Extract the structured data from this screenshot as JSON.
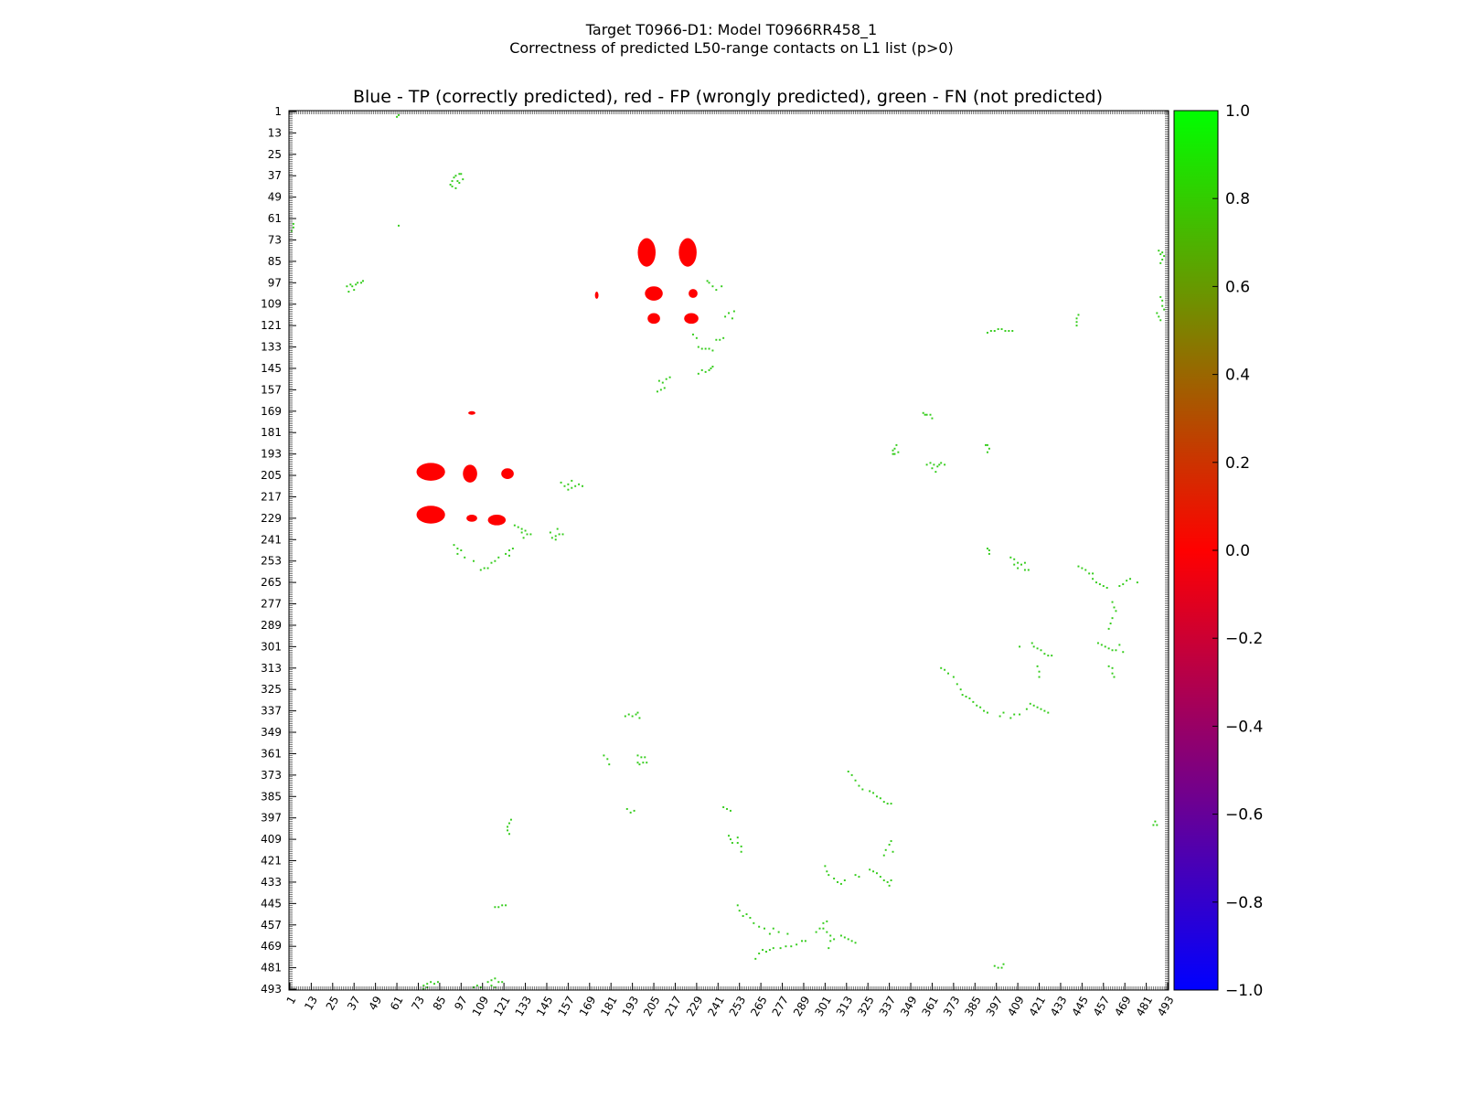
{
  "figure": {
    "title_line1": "Target T0966-D1: Model T0966RR458_1",
    "title_line2": "Correctness of predicted L50-range contacts on L1 list (p>0)"
  },
  "chart_data": {
    "type": "heatmap",
    "title": "Blue - TP (correctly predicted), red - FP (wrongly predicted), green - FN (not predicted)",
    "xlabel": "",
    "ylabel": "",
    "xlim": [
      1,
      493
    ],
    "ylim": [
      1,
      493
    ],
    "y_axis_inverted": true,
    "grid": false,
    "x_ticks": [
      "1",
      "13",
      "25",
      "37",
      "49",
      "61",
      "73",
      "85",
      "97",
      "109",
      "121",
      "133",
      "145",
      "157",
      "169",
      "181",
      "193",
      "205",
      "217",
      "229",
      "241",
      "253",
      "265",
      "277",
      "289",
      "301",
      "313",
      "325",
      "337",
      "349",
      "361",
      "373",
      "385",
      "397",
      "409",
      "421",
      "433",
      "445",
      "457",
      "469",
      "481",
      "493"
    ],
    "y_ticks": [
      "1",
      "13",
      "25",
      "37",
      "49",
      "61",
      "73",
      "85",
      "97",
      "109",
      "121",
      "133",
      "145",
      "157",
      "169",
      "181",
      "193",
      "205",
      "217",
      "229",
      "241",
      "253",
      "265",
      "277",
      "289",
      "301",
      "313",
      "325",
      "337",
      "349",
      "361",
      "373",
      "385",
      "397",
      "409",
      "421",
      "433",
      "445",
      "457",
      "469",
      "481",
      "493"
    ],
    "colorbar": {
      "min": -1.0,
      "max": 1.0,
      "ticks": [
        "1.0",
        "0.8",
        "0.6",
        "0.4",
        "0.2",
        "0.0",
        "−0.2",
        "−0.4",
        "−0.6",
        "−0.8",
        "−1.0"
      ],
      "colors": [
        "#00ff00",
        "#4a8f00",
        "#ff0000",
        "#0000ff"
      ]
    },
    "fp_regions": [
      {
        "x": 201,
        "y": 80,
        "rx": 5,
        "ry": 8
      },
      {
        "x": 224,
        "y": 80,
        "rx": 5,
        "ry": 8
      },
      {
        "x": 205,
        "y": 103,
        "rx": 5,
        "ry": 4
      },
      {
        "x": 227,
        "y": 103,
        "rx": 2.5,
        "ry": 2.5
      },
      {
        "x": 205,
        "y": 117,
        "rx": 3.5,
        "ry": 3
      },
      {
        "x": 226,
        "y": 117,
        "rx": 4,
        "ry": 3
      },
      {
        "x": 173,
        "y": 104,
        "rx": 1,
        "ry": 2
      },
      {
        "x": 80,
        "y": 203,
        "rx": 8,
        "ry": 5
      },
      {
        "x": 102,
        "y": 204,
        "rx": 4,
        "ry": 5
      },
      {
        "x": 123,
        "y": 204,
        "rx": 3.5,
        "ry": 3
      },
      {
        "x": 80,
        "y": 227,
        "rx": 8,
        "ry": 5
      },
      {
        "x": 103,
        "y": 229,
        "rx": 3,
        "ry": 2
      },
      {
        "x": 117,
        "y": 230,
        "rx": 5,
        "ry": 3
      },
      {
        "x": 103,
        "y": 170,
        "rx": 2,
        "ry": 1
      }
    ],
    "fn_points": [
      [
        61,
        4
      ],
      [
        62,
        3
      ],
      [
        62,
        65
      ],
      [
        3,
        64
      ],
      [
        3,
        66
      ],
      [
        2,
        68
      ],
      [
        93,
        38
      ],
      [
        94,
        37
      ],
      [
        95,
        40
      ],
      [
        96,
        41
      ],
      [
        92,
        40
      ],
      [
        91,
        42
      ],
      [
        98,
        39
      ],
      [
        97,
        36
      ],
      [
        96,
        36
      ],
      [
        94,
        44
      ],
      [
        92,
        43
      ],
      [
        33,
        99
      ],
      [
        35,
        98
      ],
      [
        36,
        99
      ],
      [
        38,
        98
      ],
      [
        39,
        97
      ],
      [
        41,
        97
      ],
      [
        42,
        96
      ],
      [
        34,
        102
      ],
      [
        37,
        101
      ],
      [
        235,
        96
      ],
      [
        236,
        97
      ],
      [
        238,
        99
      ],
      [
        240,
        101
      ],
      [
        243,
        99
      ],
      [
        245,
        116
      ],
      [
        247,
        114
      ],
      [
        250,
        113
      ],
      [
        249,
        117
      ],
      [
        227,
        126
      ],
      [
        229,
        128
      ],
      [
        230,
        133
      ],
      [
        232,
        134
      ],
      [
        234,
        134
      ],
      [
        236,
        134
      ],
      [
        238,
        135
      ],
      [
        240,
        129
      ],
      [
        242,
        129
      ],
      [
        244,
        128
      ],
      [
        230,
        148
      ],
      [
        232,
        146
      ],
      [
        234,
        147
      ],
      [
        236,
        146
      ],
      [
        237,
        145
      ],
      [
        238,
        144
      ],
      [
        208,
        152
      ],
      [
        210,
        153
      ],
      [
        212,
        151
      ],
      [
        214,
        150
      ],
      [
        207,
        158
      ],
      [
        209,
        157
      ],
      [
        211,
        156
      ],
      [
        392,
        125
      ],
      [
        394,
        124
      ],
      [
        396,
        124
      ],
      [
        398,
        123
      ],
      [
        400,
        123
      ],
      [
        402,
        124
      ],
      [
        404,
        124
      ],
      [
        406,
        124
      ],
      [
        442,
        117
      ],
      [
        442,
        119
      ],
      [
        442,
        121
      ],
      [
        443,
        115
      ],
      [
        488,
        79
      ],
      [
        489,
        81
      ],
      [
        490,
        80
      ],
      [
        491,
        82
      ],
      [
        490,
        84
      ],
      [
        489,
        86
      ],
      [
        489,
        105
      ],
      [
        490,
        107
      ],
      [
        490,
        110
      ],
      [
        491,
        112
      ],
      [
        488,
        116
      ],
      [
        489,
        118
      ],
      [
        487,
        114
      ],
      [
        356,
        170
      ],
      [
        357,
        171
      ],
      [
        358,
        171
      ],
      [
        360,
        171
      ],
      [
        361,
        173
      ],
      [
        339,
        191
      ],
      [
        339,
        193
      ],
      [
        340,
        190
      ],
      [
        341,
        188
      ],
      [
        342,
        192
      ],
      [
        340,
        193
      ],
      [
        358,
        199
      ],
      [
        360,
        198
      ],
      [
        362,
        199
      ],
      [
        364,
        200
      ],
      [
        366,
        198
      ],
      [
        368,
        199
      ],
      [
        361,
        201
      ],
      [
        363,
        203
      ],
      [
        365,
        199
      ],
      [
        391,
        188
      ],
      [
        392,
        188
      ],
      [
        393,
        190
      ],
      [
        392,
        192
      ],
      [
        153,
        209
      ],
      [
        155,
        211
      ],
      [
        157,
        210
      ],
      [
        159,
        212
      ],
      [
        161,
        211
      ],
      [
        163,
        210
      ],
      [
        165,
        211
      ],
      [
        157,
        213
      ],
      [
        159,
        208
      ],
      [
        127,
        233
      ],
      [
        129,
        234
      ],
      [
        131,
        235
      ],
      [
        133,
        236
      ],
      [
        134,
        238
      ],
      [
        136,
        238
      ],
      [
        131,
        237
      ],
      [
        132,
        240
      ],
      [
        148,
        240
      ],
      [
        150,
        239
      ],
      [
        152,
        238
      ],
      [
        154,
        238
      ],
      [
        147,
        237
      ],
      [
        150,
        241
      ],
      [
        151,
        235
      ],
      [
        93,
        244
      ],
      [
        95,
        246
      ],
      [
        97,
        247
      ],
      [
        95,
        249
      ],
      [
        99,
        251
      ],
      [
        104,
        253
      ],
      [
        108,
        258
      ],
      [
        110,
        257
      ],
      [
        112,
        257
      ],
      [
        114,
        254
      ],
      [
        116,
        253
      ],
      [
        118,
        251
      ],
      [
        122,
        249
      ],
      [
        124,
        247
      ],
      [
        126,
        246
      ],
      [
        124,
        250
      ],
      [
        392,
        246
      ],
      [
        393,
        247
      ],
      [
        393,
        249
      ],
      [
        405,
        251
      ],
      [
        407,
        252
      ],
      [
        409,
        254
      ],
      [
        411,
        255
      ],
      [
        413,
        254
      ],
      [
        407,
        255
      ],
      [
        409,
        257
      ],
      [
        413,
        258
      ],
      [
        415,
        258
      ],
      [
        443,
        256
      ],
      [
        445,
        257
      ],
      [
        447,
        258
      ],
      [
        449,
        260
      ],
      [
        451,
        263
      ],
      [
        453,
        265
      ],
      [
        455,
        266
      ],
      [
        457,
        267
      ],
      [
        459,
        268
      ],
      [
        451,
        260
      ],
      [
        466,
        267
      ],
      [
        468,
        266
      ],
      [
        470,
        264
      ],
      [
        472,
        263
      ],
      [
        476,
        265
      ],
      [
        462,
        276
      ],
      [
        463,
        279
      ],
      [
        464,
        281
      ],
      [
        462,
        285
      ],
      [
        461,
        288
      ],
      [
        460,
        291
      ],
      [
        454,
        299
      ],
      [
        456,
        300
      ],
      [
        458,
        301
      ],
      [
        460,
        302
      ],
      [
        462,
        303
      ],
      [
        464,
        303
      ],
      [
        466,
        300
      ],
      [
        468,
        304
      ],
      [
        417,
        299
      ],
      [
        418,
        301
      ],
      [
        420,
        302
      ],
      [
        422,
        303
      ],
      [
        424,
        305
      ],
      [
        426,
        306
      ],
      [
        428,
        306
      ],
      [
        410,
        301
      ],
      [
        420,
        312
      ],
      [
        421,
        315
      ],
      [
        421,
        318
      ],
      [
        460,
        312
      ],
      [
        462,
        313
      ],
      [
        462,
        316
      ],
      [
        463,
        318
      ],
      [
        366,
        313
      ],
      [
        368,
        314
      ],
      [
        370,
        316
      ],
      [
        373,
        318
      ],
      [
        375,
        322
      ],
      [
        377,
        325
      ],
      [
        378,
        328
      ],
      [
        380,
        329
      ],
      [
        382,
        330
      ],
      [
        384,
        332
      ],
      [
        386,
        334
      ],
      [
        388,
        335
      ],
      [
        390,
        337
      ],
      [
        392,
        338
      ],
      [
        416,
        333
      ],
      [
        418,
        334
      ],
      [
        420,
        335
      ],
      [
        422,
        336
      ],
      [
        424,
        337
      ],
      [
        426,
        338
      ],
      [
        414,
        336
      ],
      [
        410,
        339
      ],
      [
        407,
        339
      ],
      [
        405,
        341
      ],
      [
        401,
        338
      ],
      [
        399,
        340
      ],
      [
        189,
        340
      ],
      [
        191,
        339
      ],
      [
        193,
        340
      ],
      [
        195,
        339
      ],
      [
        197,
        341
      ],
      [
        196,
        338
      ],
      [
        177,
        362
      ],
      [
        179,
        364
      ],
      [
        180,
        367
      ],
      [
        196,
        362
      ],
      [
        198,
        363
      ],
      [
        200,
        363
      ],
      [
        201,
        366
      ],
      [
        199,
        366
      ],
      [
        197,
        367
      ],
      [
        196,
        366
      ],
      [
        314,
        371
      ],
      [
        316,
        373
      ],
      [
        318,
        376
      ],
      [
        320,
        379
      ],
      [
        322,
        381
      ],
      [
        326,
        382
      ],
      [
        328,
        383
      ],
      [
        330,
        385
      ],
      [
        332,
        386
      ],
      [
        334,
        388
      ],
      [
        336,
        389
      ],
      [
        338,
        389
      ],
      [
        190,
        392
      ],
      [
        192,
        394
      ],
      [
        194,
        393
      ],
      [
        125,
        398
      ],
      [
        124,
        400
      ],
      [
        123,
        402
      ],
      [
        123,
        404
      ],
      [
        124,
        406
      ],
      [
        244,
        391
      ],
      [
        246,
        392
      ],
      [
        248,
        393
      ],
      [
        247,
        407
      ],
      [
        248,
        409
      ],
      [
        249,
        411
      ],
      [
        252,
        408
      ],
      [
        252,
        411
      ],
      [
        254,
        413
      ],
      [
        254,
        416
      ],
      [
        486,
        399
      ],
      [
        487,
        401
      ],
      [
        485,
        401
      ],
      [
        301,
        424
      ],
      [
        302,
        427
      ],
      [
        303,
        429
      ],
      [
        306,
        431
      ],
      [
        308,
        433
      ],
      [
        310,
        434
      ],
      [
        312,
        432
      ],
      [
        318,
        429
      ],
      [
        320,
        430
      ],
      [
        326,
        426
      ],
      [
        328,
        427
      ],
      [
        330,
        428
      ],
      [
        332,
        430
      ],
      [
        334,
        432
      ],
      [
        336,
        433
      ],
      [
        338,
        432
      ],
      [
        337,
        435
      ],
      [
        334,
        418
      ],
      [
        335,
        415
      ],
      [
        337,
        412
      ],
      [
        338,
        410
      ],
      [
        339,
        416
      ],
      [
        116,
        447
      ],
      [
        118,
        447
      ],
      [
        120,
        446
      ],
      [
        122,
        446
      ],
      [
        252,
        446
      ],
      [
        253,
        449
      ],
      [
        255,
        452
      ],
      [
        257,
        451
      ],
      [
        259,
        453
      ],
      [
        261,
        456
      ],
      [
        264,
        458
      ],
      [
        267,
        459
      ],
      [
        270,
        462
      ],
      [
        272,
        459
      ],
      [
        275,
        461
      ],
      [
        280,
        462
      ],
      [
        266,
        471
      ],
      [
        268,
        472
      ],
      [
        270,
        471
      ],
      [
        272,
        470
      ],
      [
        276,
        470
      ],
      [
        279,
        469
      ],
      [
        282,
        469
      ],
      [
        285,
        468
      ],
      [
        288,
        466
      ],
      [
        290,
        466
      ],
      [
        296,
        461
      ],
      [
        298,
        459
      ],
      [
        300,
        459
      ],
      [
        302,
        461
      ],
      [
        304,
        463
      ],
      [
        306,
        465
      ],
      [
        300,
        456
      ],
      [
        302,
        455
      ],
      [
        304,
        466
      ],
      [
        303,
        470
      ],
      [
        310,
        463
      ],
      [
        312,
        464
      ],
      [
        314,
        465
      ],
      [
        316,
        466
      ],
      [
        318,
        467
      ],
      [
        262,
        476
      ],
      [
        264,
        473
      ],
      [
        396,
        480
      ],
      [
        398,
        481
      ],
      [
        400,
        481
      ],
      [
        401,
        479
      ],
      [
        76,
        491
      ],
      [
        78,
        490
      ],
      [
        80,
        489
      ],
      [
        82,
        490
      ],
      [
        84,
        489
      ],
      [
        76,
        493
      ],
      [
        78,
        492
      ],
      [
        104,
        492
      ],
      [
        106,
        491
      ],
      [
        108,
        492
      ],
      [
        112,
        489
      ],
      [
        114,
        488
      ],
      [
        116,
        487
      ],
      [
        118,
        489
      ],
      [
        120,
        489
      ],
      [
        114,
        491
      ],
      [
        116,
        492
      ]
    ]
  }
}
